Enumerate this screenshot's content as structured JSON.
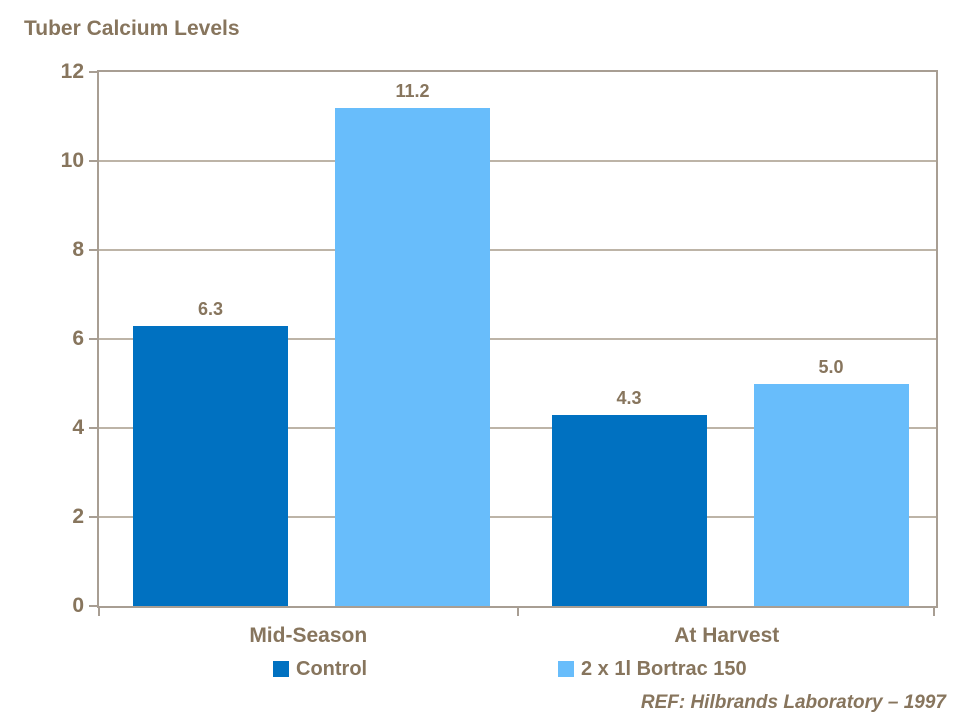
{
  "chart_data": {
    "type": "bar",
    "title": "Tuber Calcium Levels",
    "categories": [
      "Mid-Season",
      "At Harvest"
    ],
    "series": [
      {
        "name": "Control",
        "color": "#0071C1",
        "values": [
          6.3,
          4.3
        ]
      },
      {
        "name": "2 x 1l Bortrac 150",
        "color": "#68BDFB",
        "values": [
          11.2,
          5.0
        ]
      }
    ],
    "data_labels": [
      "6.3",
      "11.2",
      "4.3",
      "5.0"
    ],
    "xlabel": "",
    "ylabel": "",
    "ylim": [
      0,
      12
    ],
    "ytick_step": 2,
    "ytick_labels": [
      "0",
      "2",
      "4",
      "6",
      "8",
      "10",
      "12"
    ],
    "grid": true,
    "legend_position": "bottom"
  },
  "footnote": "REF: Hilbrands Laboratory – 1997",
  "colors": {
    "series_control": "#0071C1",
    "series_bortrac": "#68BDFB",
    "text_brown": "#87755D",
    "axis_line": "#A89E93",
    "gridline": "#BDB4A7",
    "background": "#FFFFFF"
  }
}
